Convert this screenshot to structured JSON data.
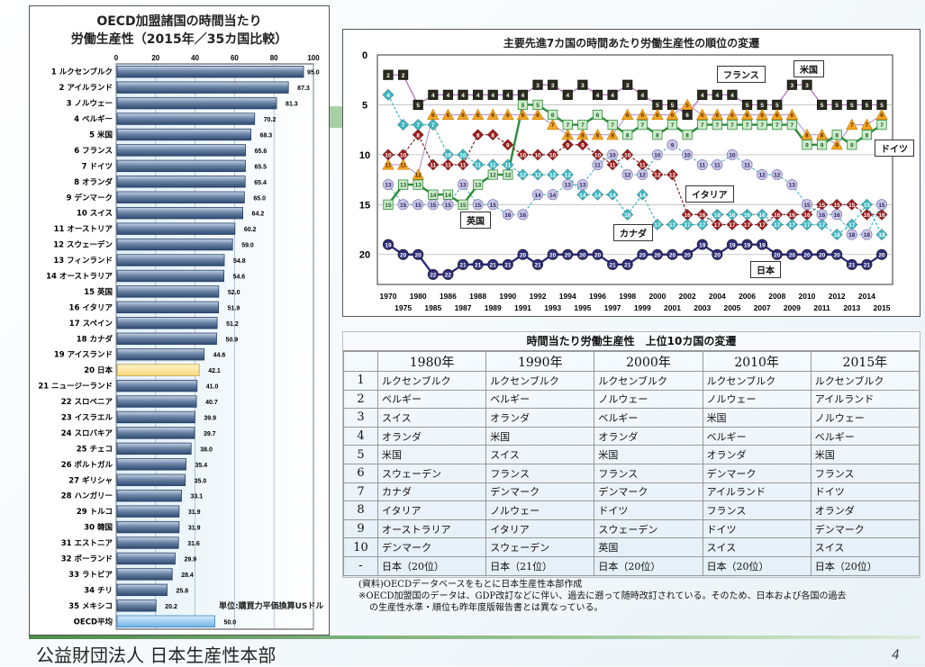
{
  "bar_chart": {
    "title_line1": "OECD加盟諸国の時間当たり",
    "title_line2": "労働生産性（2015年／35カ国比較）",
    "unit_note": "単位:購買力平価換算USドル"
  },
  "line_chart": {
    "title": "主要先進7カ国の時間あたり労働生産性の順位の変遷",
    "labels": {
      "usa": "米国",
      "france": "フランス",
      "germany": "ドイツ",
      "italy": "イタリア",
      "canada": "カナダ",
      "uk": "英国",
      "japan": "日本"
    }
  },
  "table": {
    "title": "時間当たり労働生産性　上位10カ国の変遷",
    "headers": [
      "",
      "1980年",
      "1990年",
      "2000年",
      "2010年",
      "2015年"
    ],
    "rows": [
      {
        "rank": "1",
        "cells": [
          "ルクセンブルク",
          "ルクセンブルク",
          "ルクセンブルク",
          "ルクセンブルク",
          "ルクセンブルク"
        ]
      },
      {
        "rank": "2",
        "cells": [
          "ベルギー",
          "ベルギー",
          "ノルウェー",
          "ノルウェー",
          "アイルランド"
        ]
      },
      {
        "rank": "3",
        "cells": [
          "スイス",
          "オランダ",
          "ベルギー",
          "米国",
          "ノルウェー"
        ]
      },
      {
        "rank": "4",
        "cells": [
          "オランダ",
          "米国",
          "オランダ",
          "ベルギー",
          "ベルギー"
        ]
      },
      {
        "rank": "5",
        "cells": [
          "米国",
          "スイス",
          "米国",
          "オランダ",
          "米国"
        ]
      },
      {
        "rank": "6",
        "cells": [
          "スウェーデン",
          "フランス",
          "フランス",
          "デンマーク",
          "フランス"
        ]
      },
      {
        "rank": "7",
        "cells": [
          "カナダ",
          "デンマーク",
          "デンマーク",
          "アイルランド",
          "ドイツ"
        ]
      },
      {
        "rank": "8",
        "cells": [
          "イタリア",
          "ノルウェー",
          "ドイツ",
          "フランス",
          "オランダ"
        ]
      },
      {
        "rank": "9",
        "cells": [
          "オーストラリア",
          "イタリア",
          "スウェーデン",
          "ドイツ",
          "デンマーク"
        ]
      },
      {
        "rank": "10",
        "cells": [
          "デンマーク",
          "スウェーデン",
          "英国",
          "スイス",
          "スイス"
        ]
      },
      {
        "rank": "-",
        "cells": [
          "日本（20位）",
          "日本（21位）",
          "日本（20位）",
          "日本（20位）",
          "日本（20位）"
        ]
      }
    ]
  },
  "notes": {
    "source": "(資料)OECDデータベースをもとに日本生産性本部作成",
    "caveat_line1": "※OECD加盟国のデータは、GDP改訂などに伴い、過去に遡って随時改訂されている。そのため、日本および各国の過去",
    "caveat_line2": "の生産性水準・順位も昨年度版報告書とは異なっている。"
  },
  "footer": {
    "organization": "公益財団法人 日本生産性本部",
    "page_number": "4"
  },
  "chart_data": [
    {
      "type": "bar",
      "orientation": "horizontal",
      "title": "OECD加盟諸国の時間当たり労働生産性（2015年／35カ国比較）",
      "xlabel": "",
      "ylabel": "",
      "xlim": [
        0,
        100
      ],
      "xticks": [
        0,
        20,
        40,
        60,
        80,
        100
      ],
      "grid": true,
      "unit": "購買力平価換算USドル",
      "highlight_color": "#f7d77e",
      "bar_color": "#4e6e96",
      "average_color": "#6fb4e6",
      "categories": [
        "1 ルクセンブルク",
        "2 アイルランド",
        "3 ノルウェー",
        "4 ベルギー",
        "5 米国",
        "6 フランス",
        "7 ドイツ",
        "8 オランダ",
        "9 デンマーク",
        "10 スイス",
        "11 オーストリア",
        "12 スウェーデン",
        "13 フィンランド",
        "14 オーストラリア",
        "15 英国",
        "16 イタリア",
        "17 スペイン",
        "18 カナダ",
        "19 アイスランド",
        "20 日本",
        "21 ニュージーランド",
        "22 スロベニア",
        "23 イスラエル",
        "24 スロバキア",
        "25 チェコ",
        "26 ポルトガル",
        "27 ギリシャ",
        "28 ハンガリー",
        "29 トルコ",
        "30 韓国",
        "31 エストニア",
        "32 ポーランド",
        "33 ラトビア",
        "34 チリ",
        "35 メキシコ",
        "OECD平均"
      ],
      "values": [
        95.0,
        87.3,
        81.3,
        70.2,
        68.3,
        65.6,
        65.5,
        65.4,
        65.0,
        64.2,
        60.2,
        59.0,
        54.8,
        54.6,
        52.0,
        51.9,
        51.2,
        50.9,
        44.6,
        42.1,
        41.0,
        40.7,
        39.9,
        39.7,
        38.0,
        35.4,
        35.0,
        33.1,
        31.9,
        31.9,
        31.6,
        29.9,
        28.4,
        25.8,
        20.2,
        50.0
      ],
      "value_labels": [
        "95.0",
        "87.3",
        "81.3",
        "70.2",
        "68.3",
        "65.6",
        "65.5",
        "65.4",
        "65.0",
        "64.2",
        "60.2",
        "59.0",
        "54.8",
        "54.6",
        "52.0",
        "51.9",
        "51.2",
        "50.9",
        "44.6",
        "42.1",
        "41.0",
        "40.7",
        "39.9",
        "39.7",
        "38.0",
        "35.4",
        "35.0",
        "33.1",
        "31.9",
        "31.9",
        "31.6",
        "29.9",
        "28.4",
        "25.8",
        "20.2",
        "50.0"
      ],
      "highlighted": [
        "20 日本"
      ],
      "average_category": "OECD平均"
    },
    {
      "type": "line",
      "title": "主要先進7カ国の時間あたり労働生産性の順位の変遷",
      "xlabel": "",
      "ylabel": "",
      "ylim": [
        0,
        23
      ],
      "y_inverted": true,
      "yticks": [
        0,
        5,
        10,
        15,
        20
      ],
      "grid": true,
      "x": [
        "1970",
        "1975",
        "1980",
        "1985",
        "1986",
        "1987",
        "1988",
        "1989",
        "1990",
        "1991",
        "1992",
        "1993",
        "1994",
        "1995",
        "1996",
        "1997",
        "1998",
        "1999",
        "2000",
        "2001",
        "2002",
        "2003",
        "2004",
        "2005",
        "2006",
        "2007",
        "2008",
        "2009",
        "2010",
        "2011",
        "2012",
        "2013",
        "2014",
        "2015"
      ],
      "series": [
        {
          "name": "米国",
          "key": "usa",
          "marker": "square",
          "color": "#2b2b1e",
          "line_color": "#b068b8",
          "dash": false,
          "values": [
            2,
            2,
            5,
            4,
            4,
            4,
            4,
            4,
            4,
            4,
            3,
            3,
            4,
            3,
            4,
            4,
            3,
            4,
            5,
            5,
            6,
            4,
            4,
            4,
            5,
            5,
            5,
            3,
            3,
            5,
            5,
            5,
            5,
            5
          ]
        },
        {
          "name": "フランス",
          "key": "france",
          "marker": "triangle",
          "color": "#f5a623",
          "line_color": "#b99ad0",
          "dash": false,
          "values": [
            11,
            11,
            12,
            6,
            6,
            6,
            6,
            6,
            6,
            6,
            6,
            7,
            8,
            8,
            8,
            8,
            6,
            6,
            6,
            6,
            5,
            6,
            6,
            6,
            6,
            6,
            6,
            6,
            8,
            8,
            9,
            7,
            7,
            6
          ]
        },
        {
          "name": "ドイツ",
          "key": "germany",
          "marker": "square",
          "color": "#cdeccb",
          "line_color": "#2e8b3a",
          "dash": false,
          "values": [
            15,
            13,
            13,
            14,
            14,
            15,
            13,
            12,
            12,
            5,
            5,
            6,
            7,
            7,
            6,
            7,
            8,
            7,
            8,
            7,
            8,
            7,
            7,
            7,
            7,
            7,
            7,
            7,
            9,
            9,
            8,
            9,
            8,
            7
          ]
        },
        {
          "name": "イタリア",
          "key": "italy",
          "marker": "diamond",
          "color": "#9b1c1c",
          "line_color": "#8b1a1a",
          "dash": true,
          "values": [
            10,
            10,
            8,
            11,
            11,
            11,
            8,
            8,
            9,
            10,
            10,
            10,
            9,
            9,
            10,
            11,
            10,
            11,
            12,
            12,
            16,
            16,
            17,
            17,
            17,
            17,
            16,
            16,
            16,
            15,
            15,
            15,
            16,
            16
          ]
        },
        {
          "name": "カナダ",
          "key": "canada",
          "marker": "diamond",
          "color": "#3bb8c3",
          "line_color": "#3bb8c3",
          "dash": true,
          "values": [
            4,
            7,
            7,
            7,
            10,
            10,
            11,
            11,
            11,
            12,
            12,
            12,
            12,
            14,
            14,
            14,
            16,
            14,
            17,
            17,
            17,
            17,
            16,
            16,
            16,
            16,
            17,
            17,
            17,
            17,
            18,
            17,
            15,
            18
          ]
        },
        {
          "name": "英国",
          "key": "uk",
          "marker": "circle",
          "color": "#c9c6e6",
          "line_color": "#4fb6c0",
          "dash": true,
          "values": [
            13,
            15,
            15,
            15,
            15,
            13,
            15,
            15,
            16,
            16,
            14,
            14,
            13,
            13,
            11,
            10,
            12,
            12,
            10,
            9,
            10,
            11,
            11,
            10,
            11,
            12,
            12,
            13,
            15,
            16,
            16,
            18,
            18,
            15
          ]
        },
        {
          "name": "日本",
          "key": "japan",
          "marker": "circle",
          "color": "#2e2e7a",
          "line_color": "#2e2e7a",
          "dash": false,
          "values": [
            19,
            20,
            20,
            22,
            22,
            21,
            21,
            21,
            21,
            20,
            21,
            20,
            20,
            20,
            20,
            21,
            21,
            20,
            20,
            20,
            20,
            19,
            20,
            19,
            19,
            19,
            20,
            20,
            20,
            20,
            20,
            21,
            21,
            20
          ]
        }
      ]
    }
  ]
}
